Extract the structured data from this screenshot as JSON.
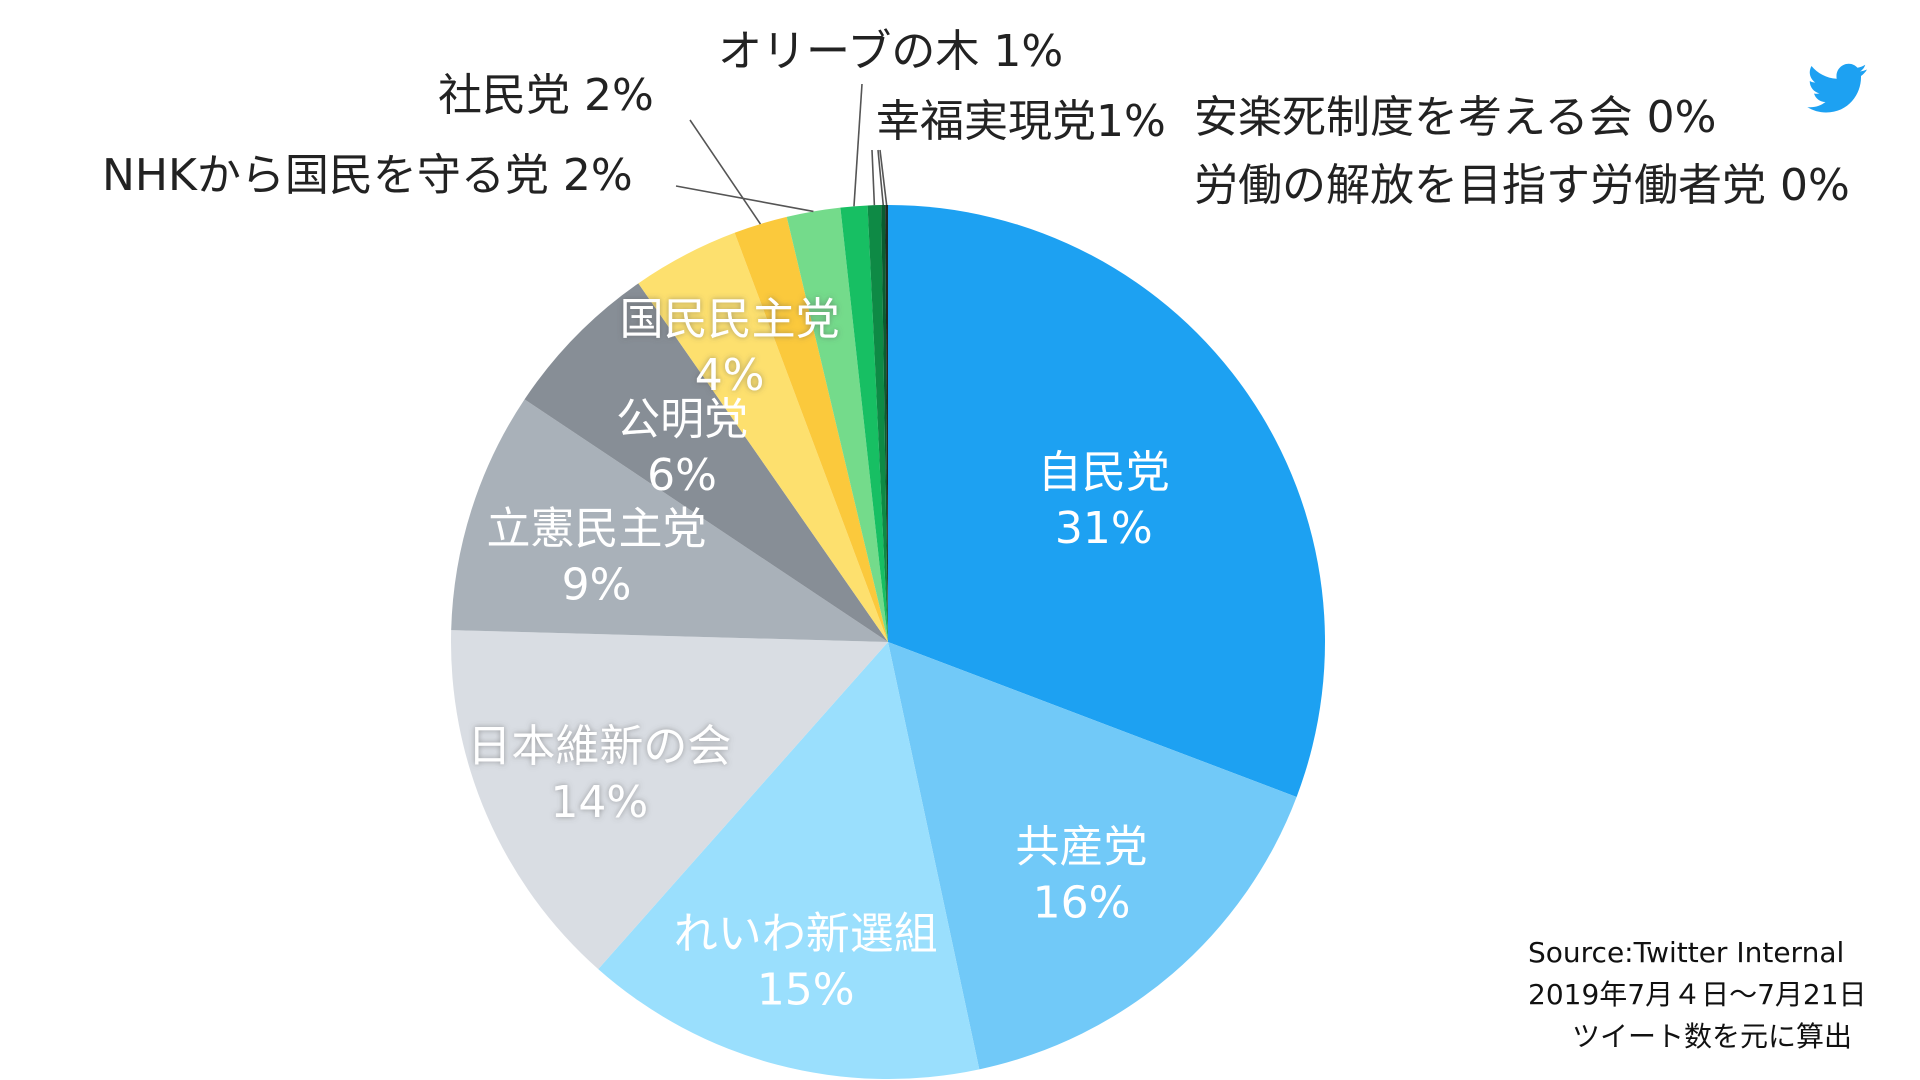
{
  "chart_data": {
    "type": "pie",
    "title": "",
    "start_angle_deg": 0,
    "direction": "clockwise",
    "slices": [
      {
        "name": "自民党",
        "value": 31,
        "display": "31%",
        "color": "#1DA1F2",
        "label": "inside"
      },
      {
        "name": "共産党",
        "value": 16,
        "display": "16%",
        "color": "#71C9F8",
        "label": "inside"
      },
      {
        "name": "れいわ新選組",
        "value": 15,
        "display": "15%",
        "color": "#9ADFFD",
        "label": "inside"
      },
      {
        "name": "日本維新の会",
        "value": 14,
        "display": "14%",
        "color": "#D9DDE3",
        "label": "inside"
      },
      {
        "name": "立憲民主党",
        "value": 9,
        "display": "9%",
        "color": "#A9B1B9",
        "label": "inside"
      },
      {
        "name": "公明党",
        "value": 6,
        "display": "6%",
        "color": "#878E96",
        "label": "inside"
      },
      {
        "name": "国民民主党",
        "value": 4,
        "display": "4%",
        "color": "#FDE06E",
        "label": "inside"
      },
      {
        "name": "社民党",
        "value": 2,
        "display": "2%",
        "color": "#FBC93C",
        "label": "outside"
      },
      {
        "name": "NHKから国民を守る党",
        "value": 2,
        "display": "2%",
        "color": "#74DB8B",
        "label": "outside"
      },
      {
        "name": "オリーブの木",
        "value": 1,
        "display": "1%",
        "color": "#17BF63",
        "label": "outside"
      },
      {
        "name": "幸福実現党",
        "value": 0.5,
        "display": "1%",
        "color": "#0E8A45",
        "label": "outside"
      },
      {
        "name": "安楽死制度を考える会",
        "value": 0.15,
        "display": "0%",
        "color": "#0A5C30",
        "label": "outside"
      },
      {
        "name": "労働の解放を目指す労働者党",
        "value": 0.1,
        "display": "0%",
        "color": "#1F2A22",
        "label": "outside"
      }
    ],
    "outside_labels": {
      "olive": "オリーブの木 1%",
      "kofuku": "幸福実現党1%",
      "shamin": "社民党 2%",
      "nhk": "NHKから国民を守る党 2%",
      "anraku": "安楽死制度を考える会 0%",
      "rodo": "労働の解放を目指す労働者党 0%"
    },
    "legend": "none",
    "grid": false
  },
  "source": {
    "line1": "Source:Twitter Internal",
    "line2": "2019年7月４日〜7月21日",
    "line3": "ツイート数を元に算出"
  },
  "icons": {
    "brand": "twitter-bird-icon",
    "brand_color": "#1DA1F2"
  }
}
